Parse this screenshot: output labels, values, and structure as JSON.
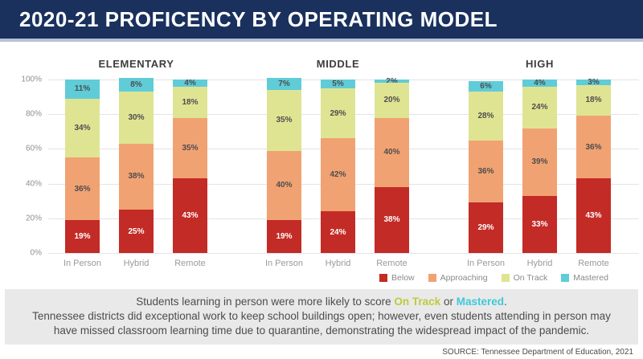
{
  "header": {
    "title": "2020-21 PROFICENCY BY OPERATING MODEL"
  },
  "chart_data": {
    "type": "bar",
    "stacked": true,
    "ylim": [
      0,
      100
    ],
    "y_tick_labels": [
      "0%",
      "20%",
      "40%",
      "60%",
      "80%",
      "100%"
    ],
    "grid": true,
    "legend_position": "bottom-right",
    "series_names": [
      "Below",
      "Approaching",
      "On Track",
      "Mastered"
    ],
    "series_colors": {
      "Below": "#c32b26",
      "Approaching": "#f1a272",
      "On Track": "#dfe493",
      "Mastered": "#5fccd8"
    },
    "groups": [
      {
        "title": "ELEMENTARY",
        "categories": [
          "In Person",
          "Hybrid",
          "Remote"
        ],
        "series": [
          {
            "name": "Below",
            "values": [
              19,
              25,
              43
            ]
          },
          {
            "name": "Approaching",
            "values": [
              36,
              38,
              35
            ]
          },
          {
            "name": "On Track",
            "values": [
              34,
              30,
              18
            ]
          },
          {
            "name": "Mastered",
            "values": [
              11,
              8,
              4
            ]
          }
        ]
      },
      {
        "title": "MIDDLE",
        "categories": [
          "In Person",
          "Hybrid",
          "Remote"
        ],
        "series": [
          {
            "name": "Below",
            "values": [
              19,
              24,
              38
            ]
          },
          {
            "name": "Approaching",
            "values": [
              40,
              42,
              40
            ]
          },
          {
            "name": "On Track",
            "values": [
              35,
              29,
              20
            ]
          },
          {
            "name": "Mastered",
            "values": [
              7,
              5,
              2
            ]
          }
        ]
      },
      {
        "title": "HIGH",
        "categories": [
          "In Person",
          "Hybrid",
          "Remote"
        ],
        "series": [
          {
            "name": "Below",
            "values": [
              29,
              33,
              43
            ]
          },
          {
            "name": "Approaching",
            "values": [
              36,
              39,
              36
            ]
          },
          {
            "name": "On Track",
            "values": [
              28,
              24,
              18
            ]
          },
          {
            "name": "Mastered",
            "values": [
              6,
              4,
              3
            ]
          }
        ]
      }
    ]
  },
  "callout": {
    "line1_prefix": "Students learning in person were more likely to score ",
    "on_track_text": "On Track",
    "line1_mid": " or ",
    "mastered_text": "Mastered",
    "line1_suffix": ".",
    "line2": "Tennessee districts did exceptional work to keep school buildings open; however, even students attending in person may have missed classroom learning time due to quarantine, demonstrating the widespread impact of the pandemic."
  },
  "source": "SOURCE: Tennessee Department of Education, 2021",
  "colors": {
    "header_bg": "#1a315e",
    "header_border": "#b7c3d3",
    "callout_bg": "#e9e9e9",
    "on_track_highlight": "#bfca3d",
    "mastered_highlight": "#3fc8d9"
  }
}
